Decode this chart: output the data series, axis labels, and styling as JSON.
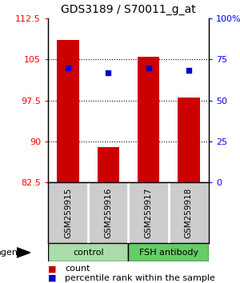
{
  "title": "GDS3189 / S70011_g_at",
  "samples": [
    "GSM259915",
    "GSM259916",
    "GSM259917",
    "GSM259918"
  ],
  "bar_values": [
    108.5,
    89.0,
    105.5,
    98.0
  ],
  "blue_values": [
    103.5,
    102.5,
    103.5,
    103.0
  ],
  "ylim_left": [
    82.5,
    112.5
  ],
  "ylim_right": [
    0,
    100
  ],
  "yticks_left": [
    82.5,
    90,
    97.5,
    105,
    112.5
  ],
  "ytick_labels_left": [
    "82.5",
    "90",
    "97.5",
    "105",
    "112.5"
  ],
  "yticks_right": [
    0,
    25,
    50,
    75,
    100
  ],
  "ytick_labels_right": [
    "0",
    "25",
    "50",
    "75",
    "100%"
  ],
  "gridlines_at": [
    90,
    97.5,
    105
  ],
  "groups": [
    {
      "label": "control",
      "indices": [
        0,
        1
      ],
      "color": "#aaddaa"
    },
    {
      "label": "FSH antibody",
      "indices": [
        2,
        3
      ],
      "color": "#66cc66"
    }
  ],
  "bar_color": "#cc0000",
  "blue_color": "#0000cc",
  "bar_width": 0.55,
  "sample_box_color": "#cccccc",
  "agent_label": "agent",
  "legend_count_label": "count",
  "legend_pct_label": "percentile rank within the sample",
  "title_fontsize": 10,
  "tick_fontsize": 8,
  "label_fontsize": 8,
  "sample_fontsize": 7.5
}
